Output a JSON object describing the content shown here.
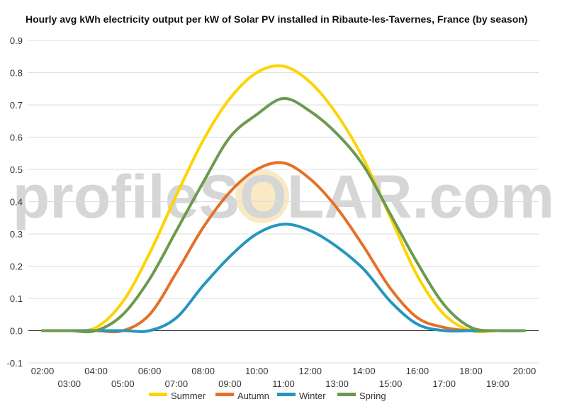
{
  "chart_data": {
    "type": "line",
    "title": "Hourly avg kWh electricity output per kW of Solar PV installed in Ribaute-les-Tavernes, France (by season)",
    "xlabel": "",
    "ylabel": "",
    "categories": [
      "02:00",
      "03:00",
      "04:00",
      "05:00",
      "06:00",
      "07:00",
      "08:00",
      "09:00",
      "10:00",
      "11:00",
      "12:00",
      "13:00",
      "14:00",
      "15:00",
      "16:00",
      "17:00",
      "18:00",
      "19:00",
      "20:00"
    ],
    "ylim": [
      -0.1,
      0.9
    ],
    "yticks": [
      -0.1,
      0.0,
      0.1,
      0.2,
      0.3,
      0.4,
      0.5,
      0.6,
      0.7,
      0.8,
      0.9
    ],
    "ytick_labels": [
      "-0.1",
      "0.0",
      "0.1",
      "0.2",
      "0.3",
      "0.4",
      "0.5",
      "0.6",
      "0.7",
      "0.8",
      "0.9"
    ],
    "grid": true,
    "legend_position": "bottom",
    "watermark": "profileSOLAR.com",
    "series": [
      {
        "name": "Summer",
        "color": "#ffd300",
        "values": [
          0.0,
          0.0,
          0.01,
          0.09,
          0.24,
          0.42,
          0.59,
          0.72,
          0.8,
          0.82,
          0.77,
          0.67,
          0.53,
          0.35,
          0.17,
          0.05,
          0.0,
          0.0,
          0.0
        ]
      },
      {
        "name": "Autumn",
        "color": "#e5702a",
        "values": [
          0.0,
          0.0,
          0.0,
          0.0,
          0.05,
          0.18,
          0.32,
          0.43,
          0.5,
          0.52,
          0.47,
          0.38,
          0.26,
          0.13,
          0.04,
          0.01,
          0.0,
          0.0,
          0.0
        ]
      },
      {
        "name": "Winter",
        "color": "#2596be",
        "values": [
          0.0,
          0.0,
          0.0,
          0.0,
          0.0,
          0.04,
          0.14,
          0.23,
          0.3,
          0.33,
          0.31,
          0.26,
          0.19,
          0.09,
          0.02,
          0.0,
          0.0,
          0.0,
          0.0
        ]
      },
      {
        "name": "Spring",
        "color": "#6d9a4e",
        "values": [
          0.0,
          0.0,
          0.0,
          0.05,
          0.16,
          0.31,
          0.46,
          0.6,
          0.67,
          0.72,
          0.68,
          0.61,
          0.51,
          0.36,
          0.21,
          0.08,
          0.01,
          0.0,
          0.0
        ]
      }
    ]
  }
}
